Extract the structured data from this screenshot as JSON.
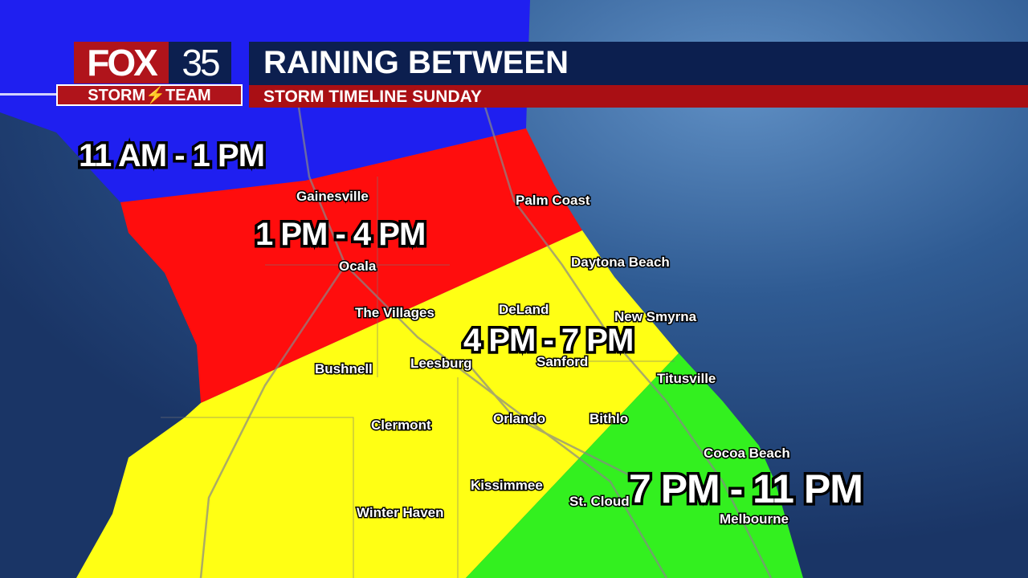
{
  "header": {
    "logo": {
      "network": "FOX",
      "channel": "35",
      "team": "STORM⚡TEAM"
    },
    "title": "RAINING BETWEEN",
    "subtitle": "STORM TIMELINE SUNDAY"
  },
  "zones": [
    {
      "label": "11 AM - 1 PM",
      "color": "#1f1ff0"
    },
    {
      "label": "1 PM - 4 PM",
      "color": "#ff0d0d"
    },
    {
      "label": "4 PM - 7 PM",
      "color": "#ffff14"
    },
    {
      "label": "7 PM - 11 PM",
      "color": "#33f01f"
    }
  ],
  "cities": [
    "Gainesville",
    "Palm Coast",
    "Ocala",
    "Daytona Beach",
    "The Villages",
    "DeLand",
    "New Smyrna",
    "Bushnell",
    "Leesburg",
    "Sanford",
    "Titusville",
    "Clermont",
    "Orlando",
    "Bithlo",
    "Cocoa Beach",
    "Kissimmee",
    "St. Cloud",
    "Melbourne",
    "Winter Haven"
  ],
  "colors": {
    "ocean": "#1d3d70",
    "header_navy": "#0c1f4f",
    "header_red": "#a90f14"
  }
}
